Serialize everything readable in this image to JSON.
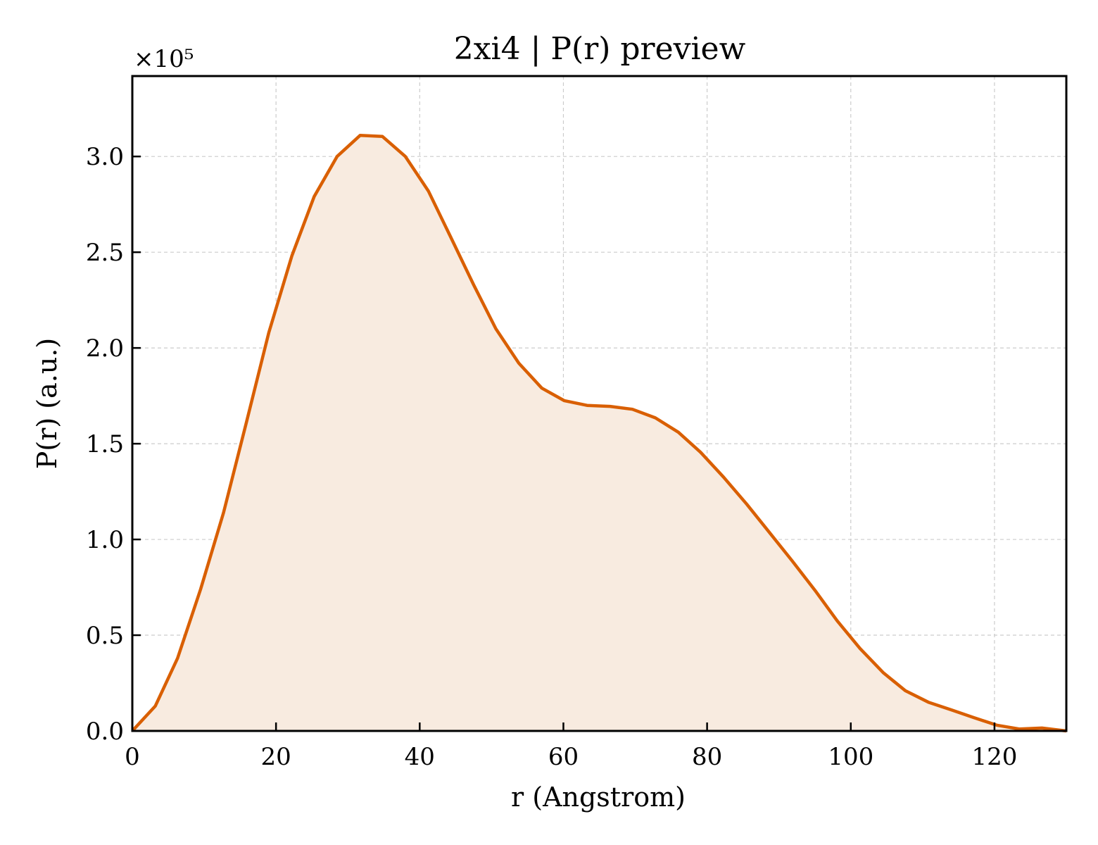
{
  "chart_data": {
    "type": "area",
    "title": "2xi4 | P(r) preview",
    "xlabel": "r (Angstrom)",
    "ylabel": "P(r) (a.u.)",
    "y_multiplier": "×10⁵",
    "xlim": [
      0,
      130
    ],
    "ylim": [
      0,
      3.42
    ],
    "x_ticks": [
      "0",
      "20",
      "40",
      "60",
      "80",
      "100",
      "120"
    ],
    "y_ticks": [
      "0.0",
      "0.5",
      "1.0",
      "1.5",
      "2.0",
      "2.5",
      "3.0"
    ],
    "grid": true,
    "line_color": "#d95f02",
    "fill_color": "#f8ebe0",
    "series": [
      {
        "x": [
          0,
          3.2,
          6.3,
          9.5,
          12.7,
          15.8,
          19.0,
          22.2,
          25.3,
          28.5,
          31.7,
          34.8,
          38.0,
          41.2,
          44.3,
          47.5,
          50.6,
          53.8,
          57.0,
          60.1,
          63.3,
          66.5,
          69.6,
          72.8,
          76.0,
          79.1,
          82.3,
          85.5,
          88.6,
          91.8,
          95.0,
          98.1,
          101.3,
          104.5,
          107.6,
          110.8,
          114.0,
          117.1,
          120.3,
          123.5,
          126.6,
          130.0
        ],
        "y": [
          0.0,
          0.13,
          0.38,
          0.74,
          1.14,
          1.6,
          2.08,
          2.48,
          2.79,
          3.0,
          3.11,
          3.105,
          3.0,
          2.82,
          2.58,
          2.33,
          2.1,
          1.92,
          1.79,
          1.725,
          1.7,
          1.695,
          1.68,
          1.635,
          1.56,
          1.455,
          1.325,
          1.185,
          1.04,
          0.89,
          0.735,
          0.575,
          0.43,
          0.305,
          0.21,
          0.15,
          0.11,
          0.07,
          0.03,
          0.01,
          0.015,
          0.0
        ]
      }
    ]
  }
}
